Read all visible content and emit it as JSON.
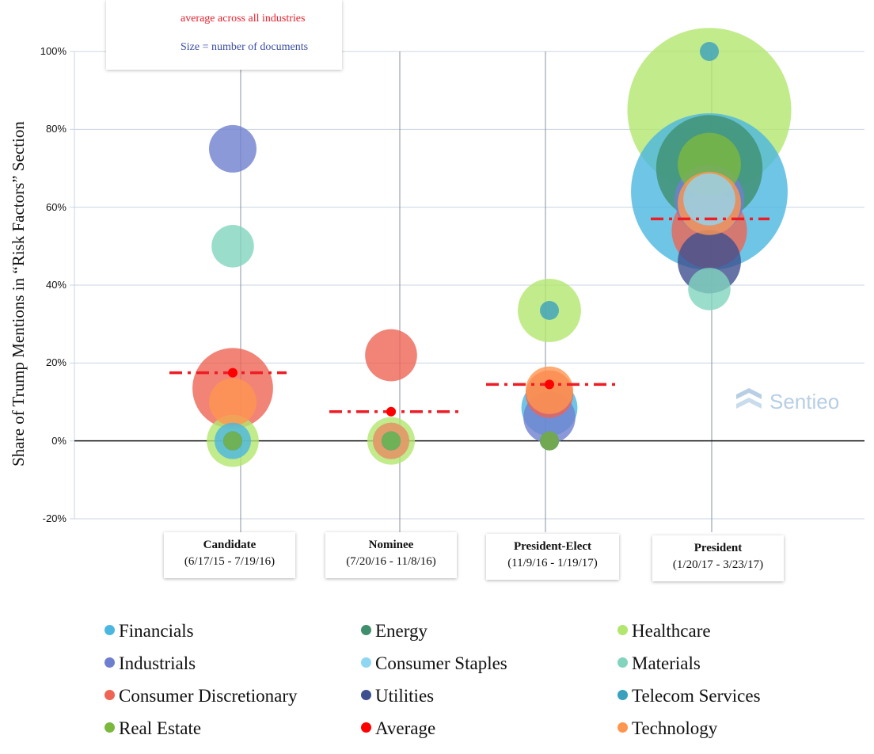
{
  "chart_data": {
    "type": "scatter",
    "subtype": "bubble",
    "ylabel": "Share of Trump Mentions in “Risk Factors” Section",
    "ylim": [
      -20,
      100
    ],
    "yticks": [
      100,
      80,
      60,
      40,
      20,
      0,
      -20
    ],
    "ytick_labels": [
      "100%",
      "80%",
      "60%",
      "40%",
      "20%",
      "0%",
      "-20%"
    ],
    "grid": "horizontal",
    "categories": [
      {
        "name": "Candidate",
        "range": "(6/17/15 - 7/19/16)"
      },
      {
        "name": "Nominee",
        "range": "(7/20/16 - 11/8/16)"
      },
      {
        "name": "President-Elect",
        "range": "(11/9/16 - 1/19/17)"
      },
      {
        "name": "President",
        "range": "(1/20/17 - 3/23/17)"
      }
    ],
    "average_line": {
      "label": "average across all industries",
      "values": [
        17.5,
        7.5,
        14.5,
        57
      ]
    },
    "size_note": "Size = number of documents",
    "series": [
      {
        "name": "Financials",
        "color": "#4bb7e0",
        "points": [
          [
            0,
            0,
            2
          ],
          [
            1,
            0,
            2
          ],
          [
            2,
            8.5,
            6
          ],
          [
            3,
            64,
            60
          ]
        ]
      },
      {
        "name": "Energy",
        "color": "#3f8f6e",
        "points": [
          [
            0,
            0,
            1
          ],
          [
            1,
            0,
            1
          ],
          [
            2,
            0,
            1
          ],
          [
            3,
            70,
            26
          ]
        ]
      },
      {
        "name": "Healthcare",
        "color": "#b3e66e",
        "points": [
          [
            0,
            0,
            5
          ],
          [
            1,
            0,
            4
          ],
          [
            2,
            33.5,
            8
          ],
          [
            3,
            85,
            66
          ]
        ]
      },
      {
        "name": "Industrials",
        "color": "#6f7fcf",
        "points": [
          [
            0,
            75,
            4
          ],
          [
            1,
            0,
            1
          ],
          [
            2,
            6,
            5
          ],
          [
            3,
            62,
            10
          ]
        ]
      },
      {
        "name": "Consumer Staples",
        "color": "#8fd6f2",
        "points": [
          [
            0,
            0,
            1
          ],
          [
            1,
            0,
            1
          ],
          [
            2,
            0,
            1
          ],
          [
            3,
            62,
            5
          ]
        ]
      },
      {
        "name": "Materials",
        "color": "#82d4be",
        "points": [
          [
            0,
            50,
            3
          ],
          [
            1,
            0,
            1
          ],
          [
            2,
            0,
            1
          ],
          [
            3,
            39,
            3
          ]
        ]
      },
      {
        "name": "Consumer Discretionary",
        "color": "#ee6455",
        "points": [
          [
            0,
            13.5,
            14
          ],
          [
            1,
            22,
            5
          ],
          [
            2,
            12,
            4
          ],
          [
            3,
            54,
            12
          ]
        ]
      },
      {
        "name": "Utilities",
        "color": "#3d4f8f",
        "points": [
          [
            0,
            0,
            1
          ],
          [
            1,
            0,
            1
          ],
          [
            2,
            0,
            1
          ],
          [
            3,
            46,
            8
          ]
        ]
      },
      {
        "name": "Telecom Services",
        "color": "#3aa0bd",
        "points": [
          [
            0,
            0,
            1
          ],
          [
            1,
            0,
            1
          ],
          [
            2,
            33.5,
            1
          ],
          [
            3,
            100,
            1
          ]
        ]
      },
      {
        "name": "Real Estate",
        "color": "#7cb83e",
        "points": [
          [
            0,
            0,
            1
          ],
          [
            1,
            0,
            1
          ],
          [
            2,
            0,
            1
          ],
          [
            3,
            71,
            8
          ]
        ]
      },
      {
        "name": "Average",
        "color": "#ff0000",
        "points": [
          [
            0,
            17.5,
            1
          ],
          [
            1,
            7.5,
            1
          ],
          [
            2,
            14.5,
            1
          ],
          [
            3,
            57,
            1
          ]
        ]
      },
      {
        "name": "Technology",
        "color": "#ff9650",
        "points": [
          [
            0,
            10,
            4
          ],
          [
            1,
            0,
            2
          ],
          [
            2,
            13,
            4
          ],
          [
            3,
            61,
            8
          ]
        ]
      }
    ],
    "legend_order": [
      "Financials",
      "Energy",
      "Healthcare",
      "Industrials",
      "Consumer Staples",
      "Materials",
      "Consumer Discretionary",
      "Utilities",
      "Telecom Services",
      "Real Estate",
      "Average",
      "Technology"
    ]
  },
  "watermark": "Sentieo"
}
